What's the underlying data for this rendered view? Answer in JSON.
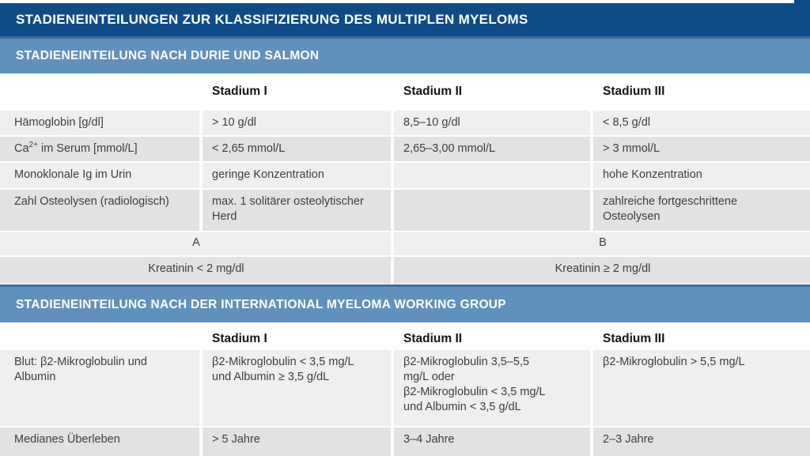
{
  "title": "STADIENEINTEILUNGEN ZUR KLASSIFIZIERUNG DES MULTIPLEN MYELOMS",
  "colors": {
    "title_bar_blue": "#0f4b87",
    "band_blue": "#6190bd",
    "row_light_gray": "#efeff0",
    "row_dark_gray": "#e2e2e5",
    "text_dark": "#3d3d3d"
  },
  "durie": {
    "heading": "STADIENEINTEILUNG NACH DURIE UND SALMON",
    "col_headers": [
      "Stadium I",
      "Stadium II",
      "Stadium III"
    ],
    "rows": [
      {
        "label": "Hämoglobin [g/dl]",
        "cells": [
          "> 10 g/dl",
          "8,5–10 g/dl",
          "< 8,5 g/dl"
        ]
      },
      {
        "label_base": "Ca",
        "label_sup": "2+",
        "label_rest": " im Serum [mmol/L]",
        "cells": [
          "< 2,65 mmol/L",
          "2,65–3,00 mmol/L",
          "> 3 mmol/L"
        ]
      },
      {
        "label": "Monoklonale Ig im Urin",
        "cells": [
          "geringe Konzentration",
          "",
          "hohe Konzentration"
        ]
      },
      {
        "label": "Zahl Osteolysen (radiologisch)",
        "cells": [
          "max. 1 solitärer osteolytischer\nHerd",
          "",
          "zahlreiche fortgeschrittene\nOsteolysen"
        ]
      }
    ],
    "ab_row": {
      "a": "A",
      "b": "B"
    },
    "kreatinin_row": {
      "a": "Kreatinin < 2 mg/dl",
      "b": "Kreatinin ≥ 2 mg/dl"
    }
  },
  "imwg": {
    "heading": "STADIENEINTEILUNG NACH DER INTERNATIONAL MYELOMA WORKING GROUP",
    "col_headers": [
      "Stadium I",
      "Stadium II",
      "Stadium III"
    ],
    "rows": [
      {
        "label": "Blut: β2-Mikroglobulin und\nAlbumin",
        "cells": [
          "β2-Mikroglobulin < 3,5 mg/L\nund Albumin ≥ 3,5 g/dL",
          "β2-Mikroglobulin 3,5–5,5\nmg/L oder\nβ2-Mikroglobulin < 3,5 mg/L\nund Albumin < 3,5 g/dL",
          "β2-Mikroglobulin > 5,5 mg/L"
        ]
      },
      {
        "label": "Medianes Überleben",
        "cells": [
          "> 5 Jahre",
          "3–4 Jahre",
          "2–3 Jahre"
        ]
      }
    ]
  }
}
